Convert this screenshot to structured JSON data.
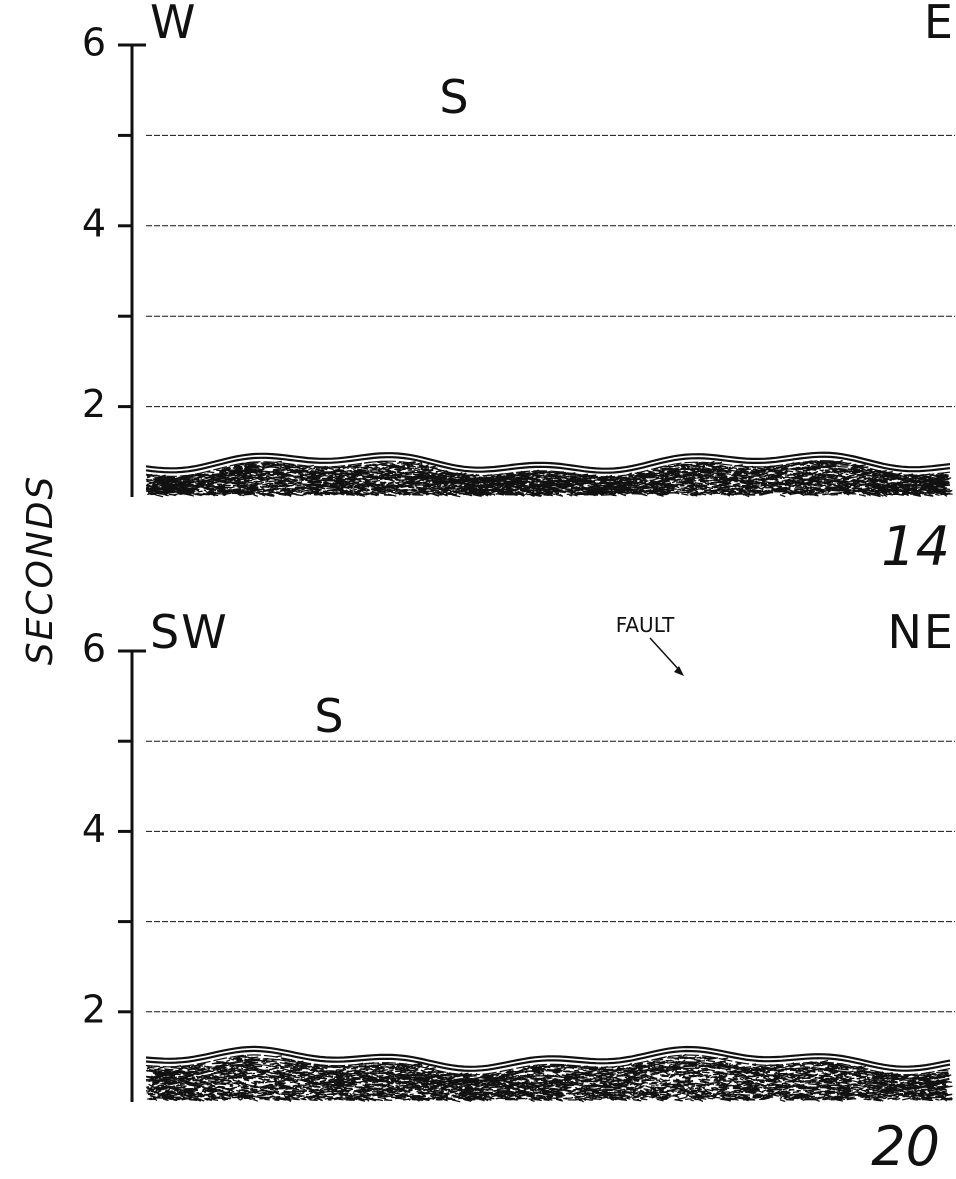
{
  "y_axis_label": "SECONDS",
  "panels": [
    {
      "left_label": "W",
      "right_label": "E",
      "marker": "S",
      "number": "14",
      "ylim": [
        1,
        6
      ],
      "yticks": [
        2,
        4,
        6
      ],
      "minor_yticks": [
        3,
        5
      ]
    },
    {
      "left_label": "SW",
      "right_label": "NE",
      "marker": "S",
      "annotation": "FAULT",
      "number": "20",
      "ylim": [
        1,
        6
      ],
      "yticks": [
        2,
        4,
        6
      ],
      "minor_yticks": [
        3,
        5
      ]
    }
  ]
}
